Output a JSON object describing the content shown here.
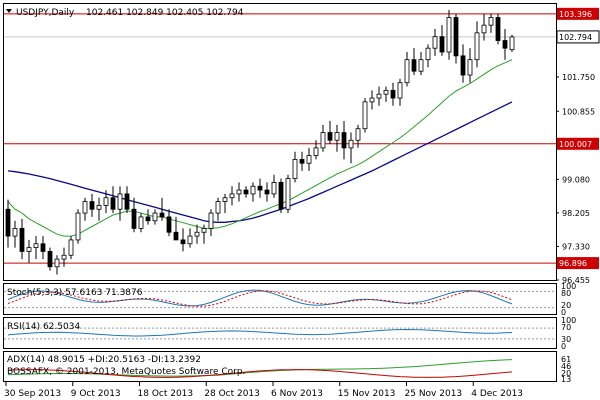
{
  "header": {
    "symbol_label": "USDJPY,Daily",
    "ohlc": "102.461 102.849 102.405 102.794"
  },
  "chart_data": {
    "type": "candlestick",
    "y_axis_labels": [
      "103.396",
      "102.794",
      "101.750",
      "100.855",
      "100.007",
      "99.080",
      "98.205",
      "97.330",
      "96.896",
      "96.455"
    ],
    "price_range": [
      96.455,
      103.6
    ],
    "horizontal_lines": [
      {
        "value": 103.396,
        "label": "103.396"
      },
      {
        "value": 100.007,
        "label": "100.007"
      },
      {
        "value": 96.896,
        "label": "96.896"
      }
    ],
    "current_price": {
      "value": 102.794,
      "label": "102.794"
    },
    "x_axis_labels": [
      "30 Sep 2013",
      "9 Oct 2013",
      "18 Oct 2013",
      "28 Oct 2013",
      "6 Nov 2013",
      "15 Nov 2013",
      "25 Nov 2013",
      "4 Dec 2013"
    ],
    "candles": [
      [
        98.3,
        98.55,
        97.3,
        97.6
      ],
      [
        97.6,
        98.0,
        97.3,
        97.8
      ],
      [
        97.8,
        98.05,
        97.0,
        97.2
      ],
      [
        97.2,
        97.5,
        96.9,
        97.3
      ],
      [
        97.3,
        97.6,
        97.0,
        97.4
      ],
      [
        97.4,
        97.6,
        97.0,
        97.2
      ],
      [
        97.2,
        97.3,
        96.7,
        96.8
      ],
      [
        96.8,
        97.1,
        96.6,
        97.0
      ],
      [
        97.0,
        97.3,
        96.8,
        97.1
      ],
      [
        97.1,
        97.6,
        97.0,
        97.5
      ],
      [
        97.5,
        98.3,
        97.4,
        98.2
      ],
      [
        98.2,
        98.6,
        98.0,
        98.5
      ],
      [
        98.5,
        98.7,
        98.1,
        98.3
      ],
      [
        98.3,
        98.6,
        98.0,
        98.4
      ],
      [
        98.4,
        98.8,
        98.2,
        98.6
      ],
      [
        98.6,
        98.9,
        98.2,
        98.3
      ],
      [
        98.3,
        98.9,
        98.0,
        98.7
      ],
      [
        98.7,
        98.9,
        98.2,
        98.3
      ],
      [
        98.3,
        98.6,
        97.7,
        97.8
      ],
      [
        97.8,
        98.2,
        97.7,
        98.1
      ],
      [
        98.1,
        98.3,
        97.9,
        98.0
      ],
      [
        98.0,
        98.3,
        97.9,
        98.2
      ],
      [
        98.2,
        98.6,
        98.0,
        98.1
      ],
      [
        98.1,
        98.3,
        97.6,
        97.7
      ],
      [
        97.7,
        98.1,
        97.5,
        97.5
      ],
      [
        97.5,
        97.8,
        97.2,
        97.4
      ],
      [
        97.4,
        97.8,
        97.3,
        97.6
      ],
      [
        97.6,
        97.9,
        97.4,
        97.7
      ],
      [
        97.7,
        97.9,
        97.4,
        97.8
      ],
      [
        97.8,
        98.3,
        97.6,
        98.2
      ],
      [
        98.2,
        98.6,
        98.0,
        98.5
      ],
      [
        98.5,
        98.7,
        98.2,
        98.6
      ],
      [
        98.6,
        98.9,
        98.4,
        98.7
      ],
      [
        98.7,
        99.0,
        98.5,
        98.8
      ],
      [
        98.8,
        98.9,
        98.6,
        98.7
      ],
      [
        98.7,
        99.0,
        98.5,
        98.9
      ],
      [
        98.9,
        99.1,
        98.6,
        98.8
      ],
      [
        98.8,
        99.0,
        98.5,
        98.7
      ],
      [
        98.7,
        99.2,
        98.6,
        99.0
      ],
      [
        99.0,
        99.1,
        98.2,
        98.3
      ],
      [
        98.3,
        99.2,
        98.2,
        99.1
      ],
      [
        99.1,
        99.8,
        99.0,
        99.6
      ],
      [
        99.6,
        99.8,
        99.3,
        99.5
      ],
      [
        99.5,
        99.9,
        99.3,
        99.7
      ],
      [
        99.7,
        100.1,
        99.6,
        99.9
      ],
      [
        99.9,
        100.5,
        99.8,
        100.3
      ],
      [
        100.3,
        100.6,
        100.0,
        100.1
      ],
      [
        100.1,
        100.5,
        99.8,
        100.3
      ],
      [
        100.3,
        100.6,
        99.6,
        99.9
      ],
      [
        99.9,
        100.3,
        99.5,
        100.1
      ],
      [
        100.1,
        100.5,
        99.9,
        100.4
      ],
      [
        100.4,
        101.2,
        100.3,
        101.1
      ],
      [
        101.1,
        101.4,
        100.9,
        101.2
      ],
      [
        101.2,
        101.5,
        101.0,
        101.3
      ],
      [
        101.3,
        101.5,
        101.1,
        101.4
      ],
      [
        101.4,
        101.6,
        101.0,
        101.2
      ],
      [
        101.2,
        101.7,
        101.0,
        101.6
      ],
      [
        101.6,
        102.4,
        101.5,
        102.2
      ],
      [
        102.2,
        102.5,
        101.8,
        101.9
      ],
      [
        101.9,
        102.4,
        101.8,
        102.2
      ],
      [
        102.2,
        102.6,
        102.0,
        102.5
      ],
      [
        102.5,
        103.0,
        102.3,
        102.8
      ],
      [
        102.8,
        103.1,
        102.3,
        102.4
      ],
      [
        102.4,
        103.5,
        102.2,
        103.3
      ],
      [
        103.3,
        103.4,
        102.1,
        102.3
      ],
      [
        102.3,
        102.6,
        101.6,
        101.8
      ],
      [
        101.8,
        102.5,
        101.6,
        102.2
      ],
      [
        102.2,
        103.2,
        102.0,
        102.9
      ],
      [
        102.9,
        103.4,
        102.7,
        103.1
      ],
      [
        103.1,
        103.4,
        102.9,
        103.3
      ],
      [
        103.3,
        103.4,
        102.6,
        102.7
      ],
      [
        102.7,
        103.0,
        102.2,
        102.5
      ],
      [
        102.461,
        102.849,
        102.405,
        102.794
      ]
    ],
    "ma_fast": [
      98.5,
      98.3,
      98.2,
      98.05,
      97.95,
      97.85,
      97.75,
      97.65,
      97.6,
      97.6,
      97.65,
      97.75,
      97.85,
      97.95,
      98.05,
      98.15,
      98.2,
      98.25,
      98.25,
      98.2,
      98.15,
      98.1,
      98.1,
      98.05,
      98.0,
      97.95,
      97.9,
      97.85,
      97.8,
      97.8,
      97.82,
      97.86,
      97.92,
      98.0,
      98.08,
      98.16,
      98.24,
      98.3,
      98.38,
      98.45,
      98.52,
      98.62,
      98.72,
      98.82,
      98.92,
      99.02,
      99.12,
      99.22,
      99.3,
      99.38,
      99.46,
      99.56,
      99.68,
      99.8,
      99.92,
      100.04,
      100.16,
      100.3,
      100.45,
      100.6,
      100.75,
      100.92,
      101.08,
      101.25,
      101.38,
      101.48,
      101.58,
      101.7,
      101.82,
      101.94,
      102.04,
      102.12,
      102.2
    ],
    "ma_slow": [
      99.3,
      99.28,
      99.25,
      99.22,
      99.18,
      99.14,
      99.1,
      99.05,
      99.0,
      98.95,
      98.9,
      98.85,
      98.8,
      98.75,
      98.7,
      98.65,
      98.6,
      98.55,
      98.5,
      98.45,
      98.4,
      98.35,
      98.3,
      98.25,
      98.2,
      98.15,
      98.1,
      98.05,
      98.0,
      97.97,
      97.96,
      97.96,
      97.98,
      98.0,
      98.03,
      98.07,
      98.12,
      98.18,
      98.24,
      98.3,
      98.37,
      98.44,
      98.51,
      98.58,
      98.66,
      98.74,
      98.82,
      98.9,
      98.98,
      99.06,
      99.14,
      99.22,
      99.3,
      99.39,
      99.48,
      99.57,
      99.66,
      99.75,
      99.84,
      99.93,
      100.02,
      100.11,
      100.2,
      100.29,
      100.38,
      100.47,
      100.56,
      100.65,
      100.74,
      100.83,
      100.92,
      101.01,
      101.1
    ]
  },
  "stoch": {
    "label": "Stoch(5,3,3) 57.6163 71.3876",
    "levels": [
      "80",
      "20"
    ],
    "scale_labels": [
      "100",
      "80",
      "20",
      "0"
    ]
  },
  "rsi": {
    "label": "RSI(14) 62.5034",
    "scale_labels": [
      "100",
      "70",
      "30",
      "0"
    ]
  },
  "adx": {
    "label": "ADX(14) 48.9015 +DI:20.5163 -DI:13.2392",
    "copyright": "BOSSAFX, © 2001-2013, MetaQuotes Software Corp.",
    "scale_labels": [
      "61",
      "46",
      "20",
      "13"
    ]
  },
  "colors": {
    "up_candle": "#ffffff",
    "down_candle": "#000000",
    "ma_fast": "#2ca02c",
    "ma_slow": "#0a0a80",
    "sr_line": "#cc0000",
    "stoch_main": "#1f77b4",
    "stoch_signal": "#cc0000",
    "rsi_line": "#1f77b4",
    "adx_line": "#2ca02c",
    "plus_di": "#2ca02c",
    "minus_di": "#cc0000"
  }
}
